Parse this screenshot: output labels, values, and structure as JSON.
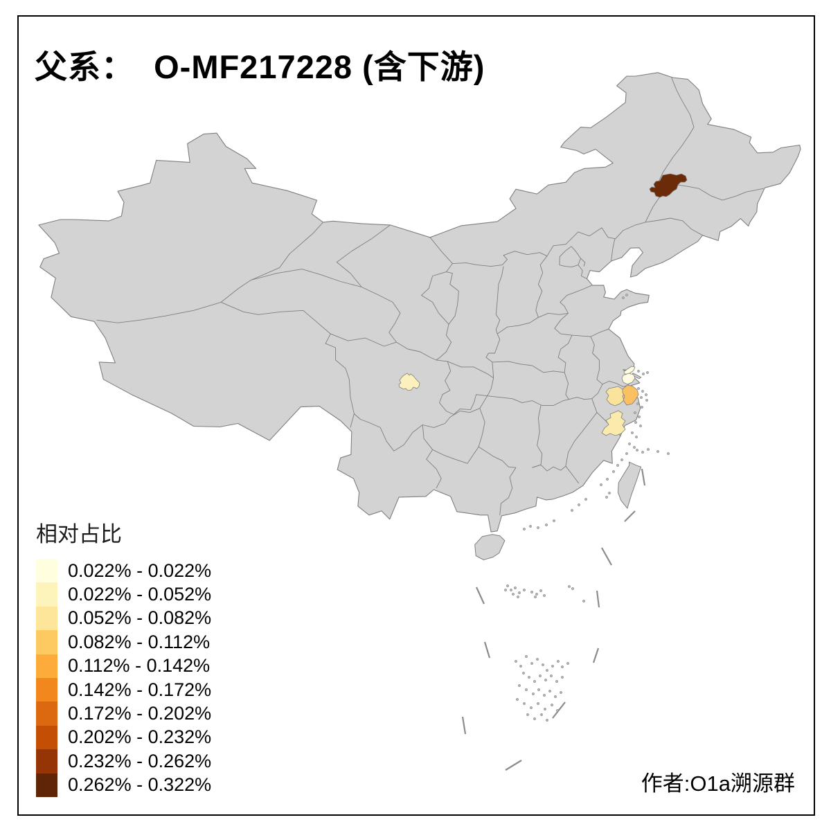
{
  "title": "父系：  O-MF217228 (含下游)",
  "attribution": "作者:O1a溯源群",
  "legend": {
    "title": "相对占比",
    "bins": [
      {
        "range": "0.022% - 0.022%",
        "color": "#FFFEDE"
      },
      {
        "range": "0.022% - 0.052%",
        "color": "#FCF4BB"
      },
      {
        "range": "0.052% - 0.082%",
        "color": "#FDE59A"
      },
      {
        "range": "0.082% - 0.112%",
        "color": "#FDCA62"
      },
      {
        "range": "0.112% - 0.142%",
        "color": "#FDAC3C"
      },
      {
        "range": "0.142% - 0.172%",
        "color": "#F2871E"
      },
      {
        "range": "0.172% - 0.202%",
        "color": "#DC690F"
      },
      {
        "range": "0.202% - 0.232%",
        "color": "#C44E03"
      },
      {
        "range": "0.232% - 0.262%",
        "color": "#953506"
      },
      {
        "range": "0.262% - 0.322%",
        "color": "#5F2506"
      }
    ]
  },
  "map": {
    "land_color": "#D3D3D3",
    "border_color": "#7E7E7E",
    "sea_color": "#FFFFFF",
    "dash_line_color": "#8B8B8B",
    "highlighted_regions": [
      {
        "id": "region-northeast",
        "value_range": "0.262% - 0.322%",
        "color": "#6B2A08"
      },
      {
        "id": "region-chengdu-plain",
        "value_range": "0.022% - 0.052%",
        "color": "#FBF0BE"
      },
      {
        "id": "region-nantong",
        "value_range": "0.022% - 0.022%",
        "color": "#FEFBE0"
      },
      {
        "id": "region-shanghai",
        "value_range": "0.022% - 0.022%",
        "color": "#FEFBE0"
      },
      {
        "id": "region-hangzhou-shaoxing",
        "value_range": "0.052% - 0.082%",
        "color": "#FAE49B"
      },
      {
        "id": "region-ningbo",
        "value_range": "0.082% - 0.112%",
        "color": "#FBC160"
      },
      {
        "id": "region-taizhou",
        "value_range": "0.022% - 0.052%",
        "color": "#FAEAAC"
      }
    ]
  },
  "chart_data": {
    "type": "choropleth-map",
    "title": "父系：  O-MF217228 (含下游)",
    "legend_title": "相对占比",
    "legend_position": "bottom-left",
    "bins": [
      "0.022% - 0.022%",
      "0.022% - 0.052%",
      "0.052% - 0.082%",
      "0.082% - 0.112%",
      "0.112% - 0.142%",
      "0.142% - 0.172%",
      "0.172% - 0.202%",
      "0.202% - 0.232%",
      "0.232% - 0.262%",
      "0.262% - 0.322%"
    ],
    "regions": [
      {
        "name": "northeast (Heilongjiang area)",
        "value_bin": "0.262% - 0.322%"
      },
      {
        "name": "Chengdu plain",
        "value_bin": "0.022% - 0.052%"
      },
      {
        "name": "Nantong area",
        "value_bin": "0.022% - 0.022%"
      },
      {
        "name": "Shanghai area",
        "value_bin": "0.022% - 0.022%"
      },
      {
        "name": "Hangzhou-Shaoxing area",
        "value_bin": "0.052% - 0.082%"
      },
      {
        "name": "Ningbo area",
        "value_bin": "0.082% - 0.112%"
      },
      {
        "name": "Taizhou area",
        "value_bin": "0.022% - 0.052%"
      }
    ]
  }
}
